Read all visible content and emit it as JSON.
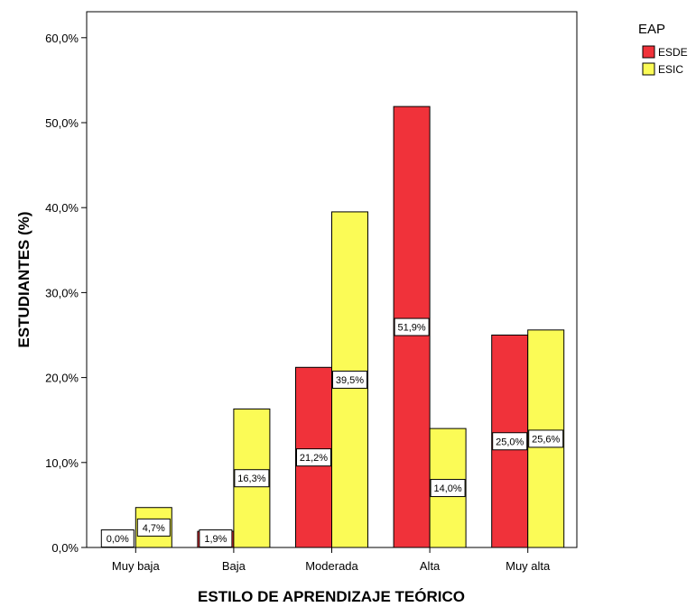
{
  "chart_data": {
    "type": "bar",
    "xlabel": "ESTILO DE APRENDIZAJE TEÓRICO",
    "ylabel": "ESTUDIANTES (%)",
    "ylim": [
      0,
      60
    ],
    "yticks": [
      "0,0%",
      "10,0%",
      "20,0%",
      "30,0%",
      "40,0%",
      "50,0%",
      "60,0%"
    ],
    "categories": [
      "Muy baja",
      "Baja",
      "Moderada",
      "Alta",
      "Muy alta"
    ],
    "series": [
      {
        "name": "ESDE",
        "color": "#f0323a",
        "values": [
          0.0,
          1.9,
          21.2,
          51.9,
          25.0
        ],
        "labels": [
          "0,0%",
          "1,9%",
          "21,2%",
          "51,9%",
          "25,0%"
        ]
      },
      {
        "name": "ESIC",
        "color": "#fbfb56",
        "values": [
          4.7,
          16.3,
          39.5,
          14.0,
          25.6
        ],
        "labels": [
          "4,7%",
          "16,3%",
          "39,5%",
          "14,0%",
          "25,6%"
        ]
      }
    ],
    "legend": {
      "title": "EAP",
      "placement": "top-right"
    },
    "grid": false
  }
}
